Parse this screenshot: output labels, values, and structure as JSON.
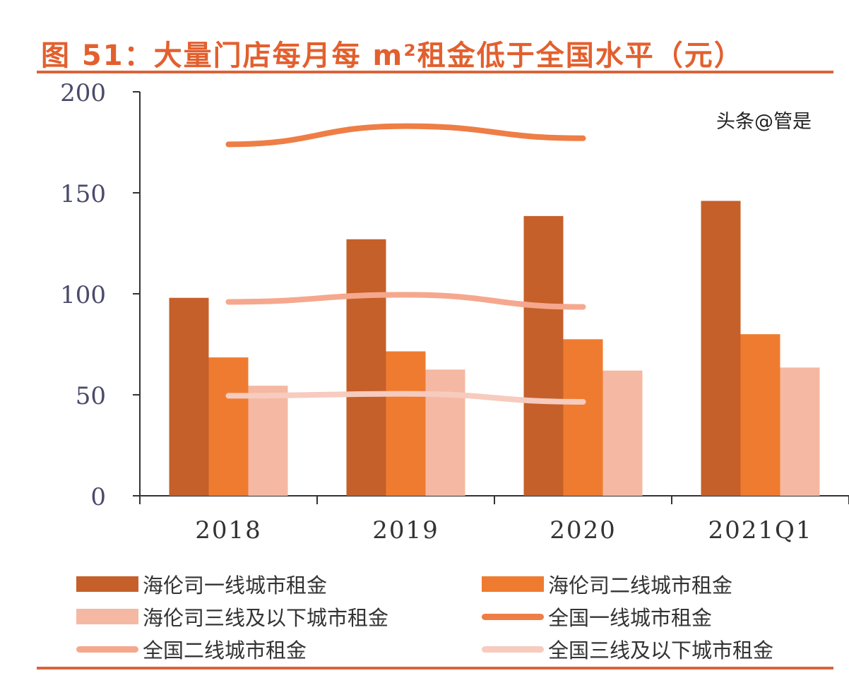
{
  "title": "图 51：大量门店每月每 m²租金低于全国水平（元）",
  "watermark": "头条@管是",
  "chart_data": {
    "type": "bar+line",
    "title": "图 51：大量门店每月每 m²租金低于全国水平（元）",
    "categories": [
      "2018",
      "2019",
      "2020",
      "2021Q1"
    ],
    "ylim": [
      0,
      200
    ],
    "yticks": [
      "0",
      "50",
      "100",
      "150",
      "200"
    ],
    "grid": false,
    "legend_position": "bottom",
    "series": [
      {
        "name": "海伦司一线城市租金",
        "kind": "bar",
        "color": "#C5602A",
        "values": [
          98,
          127,
          138.5,
          146
        ]
      },
      {
        "name": "海伦司二线城市租金",
        "kind": "bar",
        "color": "#EF7B30",
        "values": [
          68.5,
          71.5,
          77.5,
          80
        ]
      },
      {
        "name": "海伦司三线及以下城市租金",
        "kind": "bar",
        "color": "#F5B8A2",
        "values": [
          54.5,
          62.5,
          62,
          63.5
        ]
      },
      {
        "name": "全国一线城市租金",
        "kind": "line",
        "color": "#EE7E45",
        "values": [
          174,
          183,
          177,
          null
        ]
      },
      {
        "name": "全国二线城市租金",
        "kind": "line",
        "color": "#F5A88E",
        "values": [
          96,
          99.5,
          93.5,
          null
        ]
      },
      {
        "name": "全国三线及以下城市租金",
        "kind": "line",
        "color": "#F7CBBE",
        "values": [
          49.5,
          50.5,
          46.5,
          null
        ]
      }
    ]
  }
}
